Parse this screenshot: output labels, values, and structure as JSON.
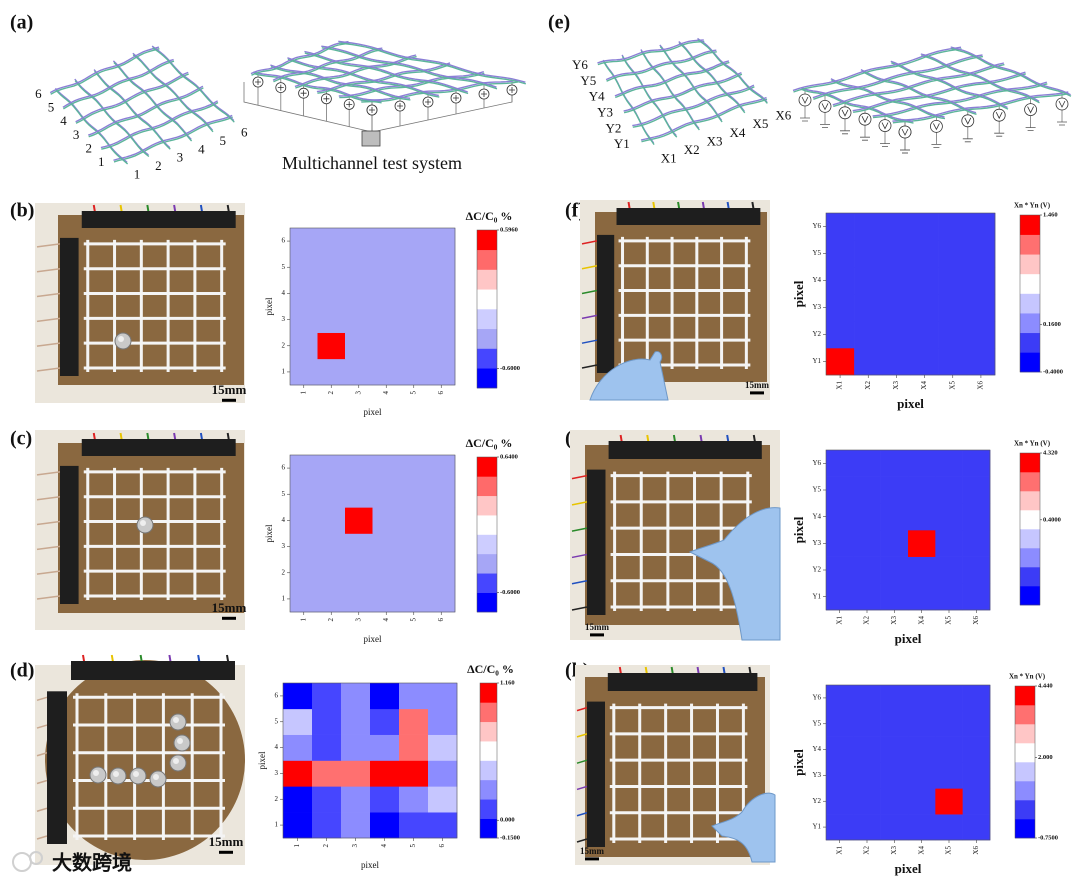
{
  "figure": {
    "panels": [
      "(a)",
      "(b)",
      "(c)",
      "(d)",
      "(e)",
      "(f)",
      "(g)",
      "(h)"
    ],
    "a": {
      "left_labels": [
        6,
        5,
        4,
        3,
        2,
        1
      ],
      "front_labels": [
        1,
        2,
        3,
        4,
        5,
        6
      ],
      "caption": "Multichannel test system"
    },
    "e": {
      "y_labels": [
        "Y6",
        "Y5",
        "Y4",
        "Y3",
        "Y2",
        "Y1"
      ],
      "x_labels": [
        "X1",
        "X2",
        "X3",
        "X4",
        "X5",
        "X6"
      ]
    },
    "scale_bars": [
      "15mm",
      "15mm",
      "15mm",
      "15mm",
      "15mm",
      "15mm"
    ],
    "watermark": "大数跨境"
  },
  "chart_data": [
    {
      "type": "heatmap",
      "xlabel": "pixel",
      "ylabel": "pixel",
      "xcategories": [
        1,
        2,
        3,
        4,
        5,
        6
      ],
      "ycategories": [
        1,
        2,
        3,
        4,
        5,
        6
      ],
      "z": [
        [
          -0.35,
          -0.35,
          -0.35,
          -0.35,
          -0.35,
          -0.35
        ],
        [
          -0.35,
          0.59,
          -0.35,
          -0.35,
          -0.35,
          -0.35
        ],
        [
          -0.35,
          -0.35,
          -0.35,
          -0.35,
          -0.35,
          -0.35
        ],
        [
          -0.35,
          -0.35,
          -0.35,
          -0.35,
          -0.35,
          -0.35
        ],
        [
          -0.35,
          -0.35,
          -0.35,
          -0.35,
          -0.35,
          -0.35
        ],
        [
          -0.35,
          -0.35,
          -0.35,
          -0.35,
          -0.35,
          -0.35
        ]
      ],
      "colorbar": {
        "title": "ΔC/C₀ %",
        "lim": [
          -0.77,
          0.596
        ],
        "ticks": [
          {
            "value": 0.596,
            "label": "0.5960"
          },
          {
            "value": -0.6,
            "label": "-0.6000"
          }
        ],
        "colors": [
          "#0000ff",
          "#4646ff",
          "#a6a6f6",
          "#cdcdff",
          "#ffffff",
          "#ffc6c6",
          "#ff6a6a",
          "#ff0000"
        ]
      }
    },
    {
      "type": "heatmap",
      "xlabel": "pixel",
      "ylabel": "pixel",
      "xcategories": [
        1,
        2,
        3,
        4,
        5,
        6
      ],
      "ycategories": [
        1,
        2,
        3,
        4,
        5,
        6
      ],
      "z": [
        [
          -0.35,
          -0.35,
          -0.35,
          -0.35,
          -0.35,
          -0.35
        ],
        [
          -0.35,
          -0.35,
          -0.35,
          -0.35,
          -0.35,
          -0.35
        ],
        [
          -0.35,
          -0.35,
          -0.35,
          -0.35,
          -0.35,
          -0.35
        ],
        [
          -0.35,
          -0.35,
          0.63,
          -0.35,
          -0.35,
          -0.35
        ],
        [
          -0.35,
          -0.35,
          -0.35,
          -0.35,
          -0.35,
          -0.35
        ],
        [
          -0.35,
          -0.35,
          -0.35,
          -0.35,
          -0.35,
          -0.35
        ]
      ],
      "colorbar": {
        "title": "ΔC/C₀ %",
        "lim": [
          -0.78,
          0.64
        ],
        "ticks": [
          {
            "value": 0.64,
            "label": "0.6400"
          },
          {
            "value": -0.6,
            "label": "-0.6000"
          }
        ],
        "colors": [
          "#0000ff",
          "#4646ff",
          "#a6a6f6",
          "#cdcdff",
          "#ffffff",
          "#ffc6c6",
          "#ff6a6a",
          "#ff0000"
        ]
      }
    },
    {
      "type": "heatmap",
      "xlabel": "pixel",
      "ylabel": "pixel",
      "xcategories": [
        1,
        2,
        3,
        4,
        5,
        6
      ],
      "ycategories": [
        1,
        2,
        3,
        4,
        5,
        6
      ],
      "z": [
        [
          -0.07,
          0.1,
          0.26,
          -0.07,
          0.1,
          0.1
        ],
        [
          -0.07,
          0.1,
          0.26,
          0.1,
          0.26,
          0.42
        ],
        [
          1.08,
          0.91,
          0.91,
          1.08,
          1.08,
          0.26
        ],
        [
          0.26,
          0.1,
          0.26,
          0.26,
          0.91,
          0.42
        ],
        [
          0.42,
          0.1,
          0.26,
          0.1,
          0.91,
          0.26
        ],
        [
          -0.07,
          0.1,
          0.26,
          -0.07,
          0.26,
          0.26
        ]
      ],
      "colorbar": {
        "title": "ΔC/C₀ %",
        "lim": [
          -0.15,
          1.16
        ],
        "ticks": [
          {
            "value": 1.16,
            "label": "1.160"
          },
          {
            "value": 0,
            "label": "0.000"
          },
          {
            "value": -0.15,
            "label": "-0.1500"
          }
        ],
        "colors": [
          "#0000ff",
          "#4646ff",
          "#8c8cff",
          "#c6c6ff",
          "#ffffff",
          "#ffc6c6",
          "#ff7070",
          "#ff0000"
        ]
      }
    },
    {
      "type": "heatmap",
      "xlabel": "pixel",
      "ylabel": "pixel",
      "xcategories": [
        "X1",
        "X2",
        "X3",
        "X4",
        "X5",
        "X6"
      ],
      "ycategories": [
        "Y1",
        "Y2",
        "Y3",
        "Y4",
        "Y5",
        "Y6"
      ],
      "z": [
        [
          1.45,
          -0.05,
          -0.05,
          -0.05,
          -0.05,
          -0.05
        ],
        [
          -0.05,
          -0.05,
          -0.05,
          -0.05,
          -0.05,
          -0.05
        ],
        [
          -0.05,
          -0.05,
          -0.05,
          -0.05,
          -0.05,
          -0.05
        ],
        [
          -0.05,
          -0.05,
          -0.05,
          -0.05,
          -0.05,
          -0.05
        ],
        [
          -0.05,
          -0.05,
          -0.05,
          -0.05,
          -0.05,
          -0.05
        ],
        [
          -0.05,
          -0.05,
          -0.05,
          -0.05,
          -0.05,
          -0.05
        ]
      ],
      "colorbar": {
        "title": "Xn * Yn (V)",
        "lim": [
          -0.4,
          1.46
        ],
        "ticks": [
          {
            "value": 1.46,
            "label": "1.460"
          },
          {
            "value": 0.16,
            "label": "0.1600"
          },
          {
            "value": -0.4,
            "label": "-0.4000"
          }
        ],
        "colors": [
          "#0000ff",
          "#3c3cf6",
          "#8c8cff",
          "#c6c6ff",
          "#ffffff",
          "#ffc6c6",
          "#ff7070",
          "#ff0000"
        ]
      }
    },
    {
      "type": "heatmap",
      "xlabel": "pixel",
      "ylabel": "pixel",
      "xcategories": [
        "X1",
        "X2",
        "X3",
        "X4",
        "X5",
        "X6"
      ],
      "ycategories": [
        "Y1",
        "Y2",
        "Y3",
        "Y4",
        "Y5",
        "Y6"
      ],
      "z": [
        [
          -2.93,
          -2.93,
          -2.93,
          -2.93,
          -2.93,
          -2.93
        ],
        [
          -2.93,
          -2.93,
          -2.93,
          -2.93,
          -2.93,
          -2.93
        ],
        [
          -2.93,
          -2.93,
          -2.93,
          4.3,
          -2.93,
          -2.93
        ],
        [
          -2.93,
          -2.93,
          -2.93,
          -2.93,
          -2.93,
          -2.93
        ],
        [
          -2.93,
          -2.93,
          -2.93,
          -2.93,
          -2.93,
          -2.93
        ],
        [
          -2.93,
          -2.93,
          -2.93,
          -2.93,
          -2.93,
          -2.93
        ]
      ],
      "colorbar": {
        "title": "Xn * Yn (V)",
        "lim": [
          -4.6,
          4.32
        ],
        "ticks": [
          {
            "value": 4.32,
            "label": "4.320"
          },
          {
            "value": 0.4,
            "label": "0.4000"
          }
        ],
        "colors": [
          "#0000ff",
          "#3c3cf6",
          "#8c8cff",
          "#c6c6ff",
          "#ffffff",
          "#ffc6c6",
          "#ff7070",
          "#ff0000"
        ]
      }
    },
    {
      "type": "heatmap",
      "xlabel": "pixel",
      "ylabel": "pixel",
      "xcategories": [
        "X1",
        "X2",
        "X3",
        "X4",
        "X5",
        "X6"
      ],
      "ycategories": [
        "Y1",
        "Y2",
        "Y3",
        "Y4",
        "Y5",
        "Y6"
      ],
      "z": [
        [
          0.22,
          0.22,
          0.22,
          0.22,
          0.22,
          0.22
        ],
        [
          0.22,
          0.22,
          0.22,
          0.22,
          4.43,
          0.22
        ],
        [
          0.22,
          0.22,
          0.22,
          0.22,
          0.22,
          0.22
        ],
        [
          0.22,
          0.22,
          0.22,
          0.22,
          0.22,
          0.22
        ],
        [
          0.22,
          0.22,
          0.22,
          0.22,
          0.22,
          0.22
        ],
        [
          0.22,
          0.22,
          0.22,
          0.22,
          0.22,
          0.22
        ]
      ],
      "colorbar": {
        "title": "Xn * Yn (V)",
        "lim": [
          -0.75,
          4.44
        ],
        "ticks": [
          {
            "value": 4.44,
            "label": "4.440"
          },
          {
            "value": 2,
            "label": "2.000"
          },
          {
            "value": -0.75,
            "label": "-0.7500"
          }
        ],
        "colors": [
          "#0000ff",
          "#3c3cf6",
          "#8c8cff",
          "#c6c6ff",
          "#ffffff",
          "#ffc6c6",
          "#ff7070",
          "#ff0000"
        ]
      }
    }
  ]
}
